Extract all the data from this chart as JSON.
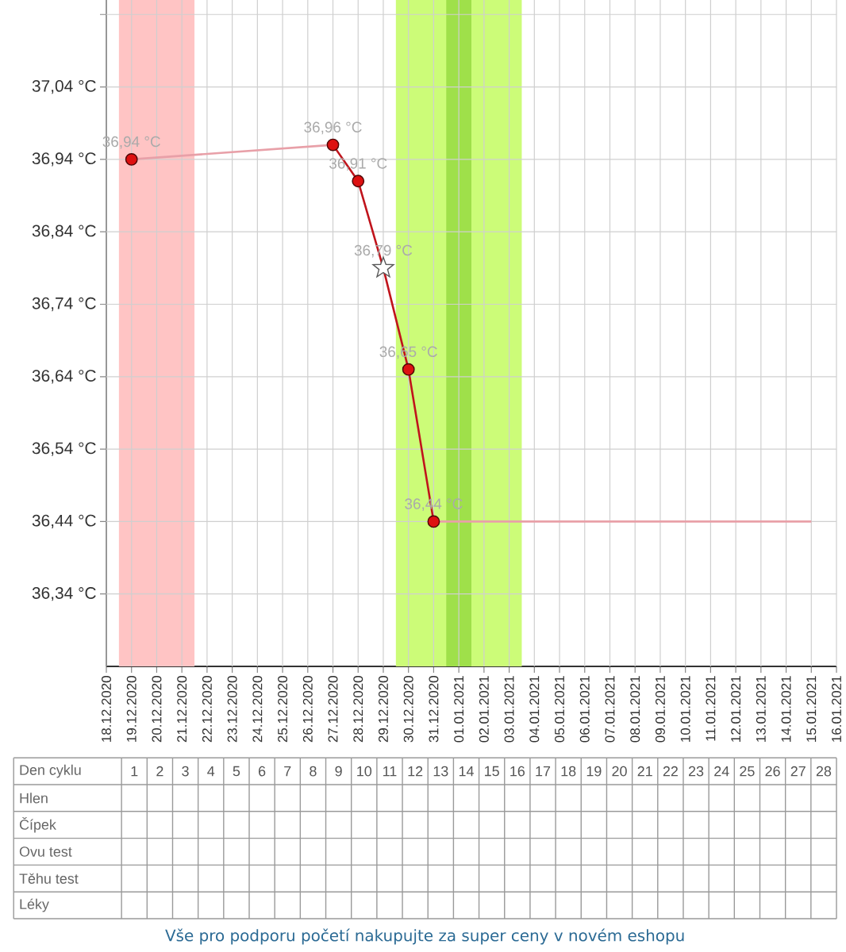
{
  "chart_data": [
    {
      "type": "line",
      "xlim": [
        "2020-12-18",
        "2021-01-16"
      ],
      "ylim": [
        36.24,
        37.16
      ],
      "xticks": [
        {
          "value": "2020-12-18",
          "label": "18.12.2020"
        },
        {
          "value": "2020-12-19",
          "label": "19.12.2020"
        },
        {
          "value": "2020-12-20",
          "label": "20.12.2020"
        },
        {
          "value": "2020-12-21",
          "label": "21.12.2020"
        },
        {
          "value": "2020-12-22",
          "label": "22.12.2020"
        },
        {
          "value": "2020-12-23",
          "label": "23.12.2020"
        },
        {
          "value": "2020-12-24",
          "label": "24.12.2020"
        },
        {
          "value": "2020-12-25",
          "label": "25.12.2020"
        },
        {
          "value": "2020-12-26",
          "label": "26.12.2020"
        },
        {
          "value": "2020-12-27",
          "label": "27.12.2020"
        },
        {
          "value": "2020-12-28",
          "label": "28.12.2020"
        },
        {
          "value": "2020-12-29",
          "label": "29.12.2020"
        },
        {
          "value": "2020-12-30",
          "label": "30.12.2020"
        },
        {
          "value": "2020-12-31",
          "label": "31.12.2020"
        },
        {
          "value": "2021-01-01",
          "label": "01.01.2021"
        },
        {
          "value": "2021-01-02",
          "label": "02.01.2021"
        },
        {
          "value": "2021-01-03",
          "label": "03.01.2021"
        },
        {
          "value": "2021-01-04",
          "label": "04.01.2021"
        },
        {
          "value": "2021-01-05",
          "label": "05.01.2021"
        },
        {
          "value": "2021-01-06",
          "label": "06.01.2021"
        },
        {
          "value": "2021-01-07",
          "label": "07.01.2021"
        },
        {
          "value": "2021-01-08",
          "label": "08.01.2021"
        },
        {
          "value": "2021-01-09",
          "label": "09.01.2021"
        },
        {
          "value": "2021-01-10",
          "label": "10.01.2021"
        },
        {
          "value": "2021-01-11",
          "label": "11.01.2021"
        },
        {
          "value": "2021-01-12",
          "label": "12.01.2021"
        },
        {
          "value": "2021-01-13",
          "label": "13.01.2021"
        },
        {
          "value": "2021-01-14",
          "label": "14.01.2021"
        },
        {
          "value": "2021-01-15",
          "label": "15.01.2021"
        },
        {
          "value": "2021-01-16",
          "label": "16.01.2021"
        }
      ],
      "yticks": [
        {
          "value": 36.34,
          "label": "36,34 °C"
        },
        {
          "value": 36.44,
          "label": "36,44 °C"
        },
        {
          "value": 36.54,
          "label": "36,54 °C"
        },
        {
          "value": 36.64,
          "label": "36,64 °C"
        },
        {
          "value": 36.74,
          "label": "36,74 °C"
        },
        {
          "value": 36.84,
          "label": "36,84 °C"
        },
        {
          "value": 36.94,
          "label": "36,94 °C"
        },
        {
          "value": 37.04,
          "label": "37,04 °C"
        },
        {
          "value": 37.14,
          "label": null
        }
      ],
      "grid": true,
      "bands": [
        {
          "axis": "x",
          "from": "2020-12-18T12:00",
          "to": "2020-12-21T12:00",
          "color": "#ffc4c4"
        },
        {
          "axis": "x",
          "from": "2020-12-29T12:00",
          "to": "2021-01-03T12:00",
          "color": "#ccfc78"
        },
        {
          "axis": "x",
          "from": "2020-12-31T12:00",
          "to": "2021-01-01T12:00",
          "color": "#9fe04a"
        }
      ],
      "series": [
        {
          "type": "line",
          "color": "#e8a0a8",
          "x": [
            "2020-12-19",
            "2020-12-27"
          ],
          "values": [
            36.94,
            36.96
          ]
        },
        {
          "type": "line",
          "color": "#e8a0a8",
          "x": [
            "2020-12-31",
            "2021-01-15"
          ],
          "values": [
            36.44,
            36.44
          ]
        },
        {
          "type": "line",
          "color": "#c0141c",
          "x": [
            "2020-12-27",
            "2020-12-28",
            "2020-12-29",
            "2020-12-30",
            "2020-12-31"
          ],
          "values": [
            36.96,
            36.91,
            36.79,
            36.65,
            36.44
          ]
        },
        {
          "type": "scatter",
          "marker": "circle",
          "color": "#dd1111",
          "x": [
            "2020-12-19",
            "2020-12-27",
            "2020-12-28",
            "2020-12-30",
            "2020-12-31"
          ],
          "values": [
            36.94,
            36.96,
            36.91,
            36.65,
            36.44
          ],
          "value_labels": [
            "36,94 °C",
            "36,96 °C",
            "36,91 °C",
            "36,65 °C",
            "36,44 °C"
          ]
        },
        {
          "type": "scatter",
          "marker": "star",
          "color": "#ffffff",
          "x": [
            "2020-12-29"
          ],
          "values": [
            36.79
          ],
          "value_labels": [
            "36,79 °C"
          ]
        }
      ]
    },
    {
      "type": "heatmap",
      "xlabel": "Den cyklu",
      "categories": [
        "1",
        "2",
        "3",
        "4",
        "5",
        "6",
        "7",
        "8",
        "9",
        "10",
        "11",
        "12",
        "13",
        "14",
        "15",
        "16",
        "17",
        "18",
        "19",
        "20",
        "21",
        "22",
        "23",
        "24",
        "25",
        "26",
        "27",
        "28"
      ],
      "y_categories": [
        "Hlen",
        "Čípek",
        "Ovu test",
        "Těhu test",
        "Léky"
      ],
      "cells": [
        [
          null,
          null,
          null,
          null,
          null,
          null,
          null,
          null,
          null,
          null,
          null,
          null,
          null,
          null,
          null,
          null,
          null,
          null,
          null,
          null,
          null,
          null,
          null,
          null,
          null,
          null,
          null,
          null
        ],
        [
          null,
          null,
          null,
          null,
          null,
          null,
          null,
          null,
          null,
          null,
          null,
          null,
          null,
          null,
          null,
          null,
          null,
          null,
          null,
          null,
          null,
          null,
          null,
          null,
          null,
          null,
          null,
          null
        ],
        [
          null,
          null,
          null,
          null,
          null,
          null,
          null,
          null,
          null,
          null,
          null,
          null,
          null,
          null,
          null,
          null,
          null,
          null,
          null,
          null,
          null,
          null,
          null,
          null,
          null,
          null,
          null,
          null
        ],
        [
          null,
          null,
          null,
          null,
          null,
          null,
          null,
          null,
          null,
          null,
          null,
          null,
          null,
          null,
          null,
          null,
          null,
          null,
          null,
          null,
          null,
          null,
          null,
          null,
          null,
          null,
          null,
          null
        ],
        [
          null,
          null,
          null,
          null,
          null,
          null,
          null,
          null,
          null,
          null,
          null,
          null,
          null,
          null,
          null,
          null,
          null,
          null,
          null,
          null,
          null,
          null,
          null,
          null,
          null,
          null,
          null,
          null
        ]
      ],
      "annotations": [
        "Vše pro podporu početí nakupujte za super ceny v novém eshopu"
      ]
    }
  ]
}
